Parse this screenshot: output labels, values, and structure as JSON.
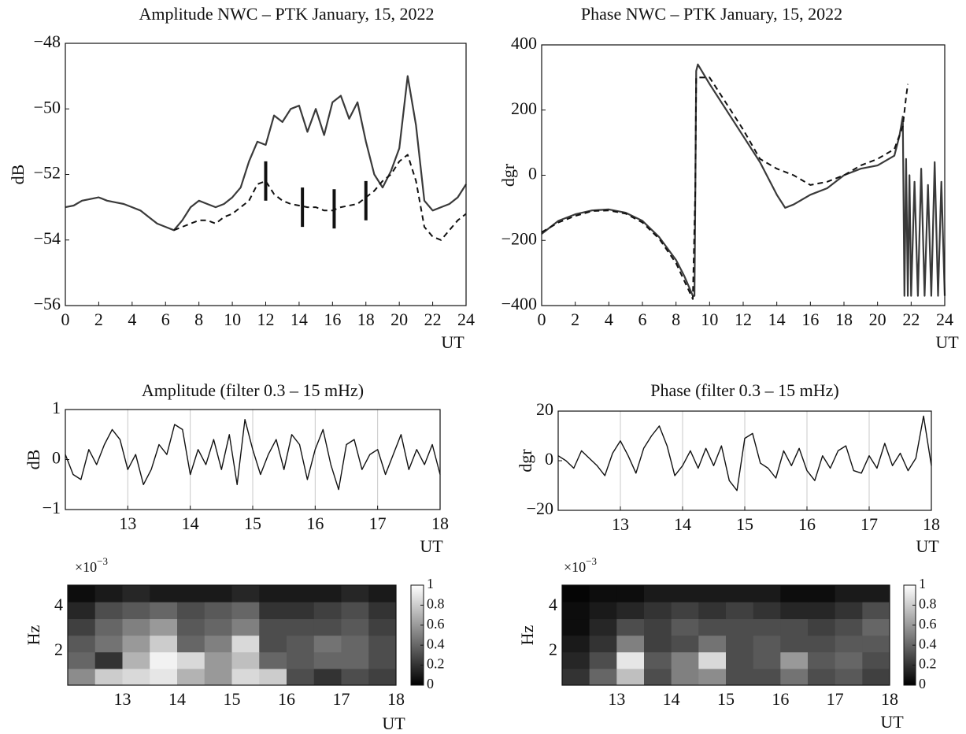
{
  "chart_data": [
    {
      "type": "line",
      "title": "Amplitude NWC – PTK January, 15, 2022",
      "x_label": "UT",
      "y_label": "dB",
      "x": [
        0,
        0.5,
        1,
        1.5,
        2,
        2.5,
        3,
        3.5,
        4,
        4.5,
        5,
        5.5,
        6,
        6.5,
        7,
        7.5,
        8,
        8.5,
        9,
        9.5,
        10,
        10.5,
        11,
        11.5,
        12,
        12.5,
        13,
        13.5,
        14,
        14.5,
        15,
        15.5,
        16,
        16.5,
        17,
        17.5,
        18,
        18.5,
        19,
        19.5,
        20,
        20.5,
        21,
        21.5,
        22,
        22.5,
        23,
        23.5,
        24
      ],
      "series": [
        {
          "color": "#3a3a3a",
          "linestyle": "solid",
          "values": [
            -53,
            -52.95,
            -52.8,
            -52.75,
            -52.7,
            -52.8,
            -52.85,
            -52.9,
            -53,
            -53.1,
            -53.3,
            -53.5,
            -53.6,
            -53.7,
            -53.4,
            -53,
            -52.8,
            -52.9,
            -53,
            -52.9,
            -52.7,
            -52.4,
            -51.6,
            -51,
            -51.1,
            -50.2,
            -50.4,
            -50,
            -49.9,
            -50.7,
            -50,
            -50.8,
            -49.8,
            -49.6,
            -50.3,
            -49.8,
            -51,
            -52,
            -52.4,
            -51.9,
            -51.2,
            -49,
            -50.5,
            -52.8,
            -53.1,
            -53,
            -52.9,
            -52.7,
            -52.3
          ]
        },
        {
          "color": "#111111",
          "linestyle": "dashed",
          "values": [
            null,
            null,
            null,
            null,
            null,
            null,
            null,
            null,
            null,
            null,
            null,
            null,
            null,
            -53.7,
            -53.6,
            -53.5,
            -53.4,
            -53.4,
            -53.5,
            -53.3,
            -53.2,
            -53,
            -52.8,
            -52.3,
            -52.2,
            -52.6,
            -52.8,
            -52.9,
            -52.95,
            -53,
            -53,
            -53.1,
            -53.1,
            -53,
            -52.95,
            -52.9,
            -52.7,
            -52.5,
            -52.2,
            -52,
            -51.6,
            -51.4,
            -52.2,
            -53.6,
            -53.9,
            -54,
            -53.7,
            -53.4,
            -53.2
          ]
        }
      ],
      "error_bars": {
        "color": "#111111",
        "x": [
          12,
          14.2,
          16.1,
          18
        ],
        "values": [
          -52.2,
          -53,
          -53.05,
          -52.8
        ],
        "errors": [
          0.6,
          0.6,
          0.6,
          0.6
        ]
      },
      "xlim": [
        0,
        24
      ],
      "xticks": [
        0,
        2,
        4,
        6,
        8,
        10,
        12,
        14,
        16,
        18,
        20,
        22,
        24
      ],
      "ylim": [
        -56,
        -48
      ],
      "yticks": [
        {
          "value": -56,
          "label": "−56"
        },
        {
          "value": -54,
          "label": "−54"
        },
        {
          "value": -52,
          "label": "−52"
        },
        {
          "value": -50,
          "label": "−50"
        },
        {
          "value": -48,
          "label": "−48"
        }
      ],
      "xgrid": false
    },
    {
      "type": "line",
      "title": "Phase NWC – PTK January, 15, 2022",
      "x_label": "UT",
      "y_label": "dgr",
      "series": [
        {
          "color": "#3a3a3a",
          "linestyle": "solid",
          "x": [
            0,
            1,
            2,
            3,
            4,
            5,
            6,
            7,
            8,
            8.5,
            9,
            9.1,
            9.15,
            9.2,
            9.3,
            10,
            11,
            12,
            13,
            14,
            14.5,
            15,
            16,
            17,
            18,
            19,
            20,
            21,
            21.3,
            21.5,
            21.6,
            21.7,
            21.8,
            21.9,
            22,
            22.2,
            22.4,
            22.6,
            22.8,
            23,
            23.2,
            23.4,
            23.6,
            23.8,
            24
          ],
          "values": [
            -180,
            -140,
            -120,
            -108,
            -105,
            -115,
            -140,
            -190,
            -260,
            -310,
            -370,
            -370,
            -50,
            320,
            340,
            280,
            200,
            120,
            40,
            -60,
            -100,
            -90,
            -60,
            -40,
            0,
            20,
            30,
            60,
            120,
            180,
            -370,
            50,
            -370,
            0,
            -370,
            -20,
            -370,
            20,
            -370,
            -30,
            -370,
            40,
            -370,
            -20,
            -370
          ]
        },
        {
          "color": "#111111",
          "linestyle": "dashed",
          "x": [
            0,
            1,
            2,
            3,
            4,
            5,
            6,
            7,
            8,
            9,
            9.15,
            9.2,
            10,
            11,
            12,
            13,
            14,
            15,
            16,
            17,
            18,
            19,
            20,
            21,
            21.5,
            21.7,
            21.8
          ],
          "values": [
            -175,
            -145,
            -125,
            -110,
            -108,
            -118,
            -145,
            -195,
            -270,
            -380,
            -40,
            300,
            300,
            220,
            140,
            50,
            20,
            0,
            -30,
            -20,
            0,
            30,
            50,
            80,
            150,
            240,
            280
          ]
        }
      ],
      "xlim": [
        0,
        24
      ],
      "xticks": [
        0,
        2,
        4,
        6,
        8,
        10,
        12,
        14,
        16,
        18,
        20,
        22,
        24
      ],
      "ylim": [
        -400,
        400
      ],
      "yticks": [
        {
          "value": -400,
          "label": "−400"
        },
        {
          "value": -200,
          "label": "−200"
        },
        0,
        200,
        400
      ],
      "xgrid": false
    },
    {
      "type": "line",
      "title": "Amplitude (filter 0.3 – 15 mHz)",
      "x_label": "UT",
      "y_label": "dB",
      "x": [
        12,
        12.125,
        12.25,
        12.375,
        12.5,
        12.625,
        12.75,
        12.875,
        13,
        13.125,
        13.25,
        13.375,
        13.5,
        13.625,
        13.75,
        13.875,
        14,
        14.125,
        14.25,
        14.375,
        14.5,
        14.625,
        14.75,
        14.875,
        15,
        15.125,
        15.25,
        15.375,
        15.5,
        15.625,
        15.75,
        15.875,
        16,
        16.125,
        16.25,
        16.375,
        16.5,
        16.625,
        16.75,
        16.875,
        17,
        17.125,
        17.25,
        17.375,
        17.5,
        17.625,
        17.75,
        17.875,
        18
      ],
      "series": [
        {
          "color": "#111111",
          "linestyle": "solid",
          "values": [
            0.1,
            -0.3,
            -0.4,
            0.2,
            -0.1,
            0.3,
            0.6,
            0.4,
            -0.2,
            0.1,
            -0.5,
            -0.2,
            0.3,
            0.1,
            0.7,
            0.6,
            -0.3,
            0.2,
            -0.1,
            0.4,
            -0.2,
            0.5,
            -0.5,
            0.8,
            0.2,
            -0.3,
            0.1,
            0.4,
            -0.2,
            0.5,
            0.3,
            -0.4,
            0.2,
            0.6,
            -0.1,
            -0.6,
            0.3,
            0.4,
            -0.2,
            0.1,
            0.2,
            -0.3,
            0.1,
            0.5,
            -0.2,
            0.2,
            -0.1,
            0.3,
            -0.3
          ]
        }
      ],
      "xlim": [
        12,
        18
      ],
      "xticks": [
        13,
        14,
        15,
        16,
        17,
        18
      ],
      "ylim": [
        -1,
        1
      ],
      "yticks": [
        {
          "value": -1,
          "label": "−1"
        },
        0,
        1
      ],
      "xgrid": true
    },
    {
      "type": "line",
      "title": "Phase (filter 0.3 – 15 mHz)",
      "x_label": "UT",
      "y_label": "dgr",
      "x": [
        12,
        12.125,
        12.25,
        12.375,
        12.5,
        12.625,
        12.75,
        12.875,
        13,
        13.125,
        13.25,
        13.375,
        13.5,
        13.625,
        13.75,
        13.875,
        14,
        14.125,
        14.25,
        14.375,
        14.5,
        14.625,
        14.75,
        14.875,
        15,
        15.125,
        15.25,
        15.375,
        15.5,
        15.625,
        15.75,
        15.875,
        16,
        16.125,
        16.25,
        16.375,
        16.5,
        16.625,
        16.75,
        16.875,
        17,
        17.125,
        17.25,
        17.375,
        17.5,
        17.625,
        17.75,
        17.875,
        18
      ],
      "series": [
        {
          "color": "#111111",
          "linestyle": "solid",
          "values": [
            2,
            0,
            -3,
            4,
            1,
            -2,
            -6,
            3,
            8,
            2,
            -5,
            5,
            10,
            14,
            6,
            -6,
            -2,
            4,
            -3,
            5,
            -2,
            6,
            -8,
            -12,
            9,
            11,
            -1,
            -3,
            -7,
            4,
            -2,
            5,
            -4,
            -8,
            2,
            -3,
            4,
            6,
            -4,
            -5,
            2,
            -3,
            7,
            -2,
            3,
            -4,
            1,
            18,
            -2
          ]
        }
      ],
      "xlim": [
        12,
        18
      ],
      "xticks": [
        13,
        14,
        15,
        16,
        17,
        18
      ],
      "ylim": [
        -20,
        20
      ],
      "yticks": [
        {
          "value": -20,
          "label": "−20"
        },
        0,
        20
      ],
      "xgrid": true
    },
    {
      "type": "heatmap",
      "x_label": "UT",
      "y_label": "Hz",
      "y_multiplier": {
        "base": "×10",
        "exponent": "−3"
      },
      "x": [
        12.25,
        12.75,
        13.25,
        13.75,
        14.25,
        14.75,
        15.25,
        15.75,
        16.25,
        16.75,
        17.25,
        17.75
      ],
      "y": [
        0.87,
        1.61,
        2.35,
        3.09,
        3.83,
        4.58
      ],
      "z": [
        [
          0.55,
          0.8,
          0.85,
          0.9,
          0.7,
          0.6,
          0.85,
          0.8,
          0.3,
          0.2,
          0.3,
          0.25
        ],
        [
          0.4,
          0.2,
          0.7,
          0.95,
          0.85,
          0.6,
          0.75,
          0.4,
          0.35,
          0.4,
          0.4,
          0.3
        ],
        [
          0.35,
          0.45,
          0.6,
          0.8,
          0.4,
          0.5,
          0.85,
          0.3,
          0.35,
          0.45,
          0.4,
          0.3
        ],
        [
          0.25,
          0.4,
          0.5,
          0.6,
          0.35,
          0.4,
          0.5,
          0.3,
          0.3,
          0.3,
          0.35,
          0.25
        ],
        [
          0.15,
          0.3,
          0.35,
          0.4,
          0.3,
          0.35,
          0.4,
          0.2,
          0.2,
          0.25,
          0.3,
          0.2
        ],
        [
          0.05,
          0.1,
          0.15,
          0.1,
          0.1,
          0.1,
          0.15,
          0.1,
          0.1,
          0.1,
          0.15,
          0.1
        ]
      ],
      "xlim": [
        12,
        18
      ],
      "xticks": [
        13,
        14,
        15,
        16,
        17,
        18
      ],
      "ylim": [
        0.5,
        4.95
      ],
      "yticks": [
        2,
        4
      ],
      "colormap": "gray",
      "colorbar": {
        "lim": [
          0,
          1
        ],
        "ticks": [
          0,
          0.2,
          0.4,
          0.6,
          0.8,
          1
        ]
      }
    },
    {
      "type": "heatmap",
      "x_label": "UT",
      "y_label": "Hz",
      "y_multiplier": {
        "base": "×10",
        "exponent": "−3"
      },
      "x": [
        12.25,
        12.75,
        13.25,
        13.75,
        14.25,
        14.75,
        15.25,
        15.75,
        16.25,
        16.75,
        17.25,
        17.75
      ],
      "y": [
        0.87,
        1.61,
        2.35,
        3.09,
        3.83,
        4.58
      ],
      "z": [
        [
          0.2,
          0.4,
          0.75,
          0.3,
          0.5,
          0.55,
          0.3,
          0.3,
          0.45,
          0.3,
          0.35,
          0.25
        ],
        [
          0.15,
          0.3,
          0.9,
          0.35,
          0.5,
          0.85,
          0.3,
          0.35,
          0.6,
          0.35,
          0.4,
          0.3
        ],
        [
          0.1,
          0.2,
          0.5,
          0.25,
          0.3,
          0.45,
          0.3,
          0.35,
          0.3,
          0.3,
          0.35,
          0.35
        ],
        [
          0.05,
          0.15,
          0.3,
          0.25,
          0.35,
          0.3,
          0.3,
          0.3,
          0.3,
          0.25,
          0.3,
          0.4
        ],
        [
          0.05,
          0.1,
          0.15,
          0.2,
          0.25,
          0.2,
          0.25,
          0.2,
          0.15,
          0.15,
          0.2,
          0.3
        ],
        [
          0.02,
          0.05,
          0.05,
          0.1,
          0.1,
          0.1,
          0.1,
          0.1,
          0.05,
          0.05,
          0.1,
          0.1
        ]
      ],
      "xlim": [
        12,
        18
      ],
      "xticks": [
        13,
        14,
        15,
        16,
        17,
        18
      ],
      "ylim": [
        0.5,
        4.95
      ],
      "yticks": [
        2,
        4
      ],
      "colormap": "gray",
      "colorbar": {
        "lim": [
          0,
          1
        ],
        "ticks": [
          0,
          0.2,
          0.4,
          0.6,
          0.8,
          1
        ]
      }
    }
  ]
}
